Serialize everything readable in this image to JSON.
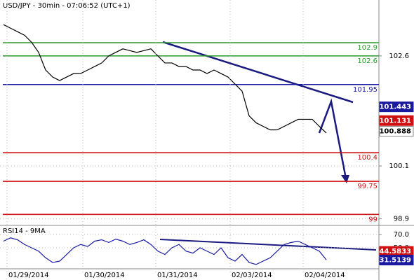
{
  "chart_data": [
    {
      "type": "line",
      "title": "USD/JPY - 30min - 07:06:52 (UTC+1)",
      "x": [
        0,
        1,
        2,
        3,
        4,
        5,
        6,
        7,
        8,
        9,
        10,
        11,
        12,
        13,
        14,
        15,
        16,
        17,
        18,
        19,
        20,
        21,
        22,
        23,
        24,
        25,
        26,
        27,
        28,
        29,
        30,
        31,
        32,
        33,
        34,
        35,
        36,
        37,
        38,
        39,
        40,
        41,
        42,
        43,
        44,
        45,
        46
      ],
      "series": [
        {
          "color": "#000000",
          "values": [
            103.31,
            103.23,
            103.15,
            103.07,
            102.91,
            102.68,
            102.28,
            102.12,
            102.04,
            102.12,
            102.2,
            102.2,
            102.28,
            102.36,
            102.44,
            102.6,
            102.68,
            102.76,
            102.72,
            102.68,
            102.72,
            102.76,
            102.6,
            102.44,
            102.44,
            102.36,
            102.36,
            102.28,
            102.28,
            102.2,
            102.28,
            102.2,
            102.12,
            101.96,
            101.8,
            101.24,
            101.08,
            101.0,
            100.92,
            100.92,
            101.0,
            101.08,
            101.16,
            101.16,
            101.16,
            101.0,
            100.85
          ]
        }
      ],
      "xlim": [
        -0.5,
        53.5
      ],
      "ylim": [
        98.75,
        103.87
      ],
      "yticks": [
        98.9,
        100.1,
        102.6
      ],
      "levels": [
        {
          "value": 102.9,
          "color": "#2a9a2a"
        },
        {
          "value": 102.6,
          "color": "#2a9a2a"
        },
        {
          "value": 101.95,
          "color": "#1a1aa0"
        },
        {
          "value": 100.4,
          "color": "#d01010"
        },
        {
          "value": 99.75,
          "color": "#d01010"
        },
        {
          "value": 99,
          "color": "#d01010"
        }
      ],
      "price_tags": [
        {
          "value": 101.443,
          "color": "#1a1aa0",
          "text_color": "#ffffff"
        },
        {
          "value": 101.131,
          "color": "#d01010",
          "text_color": "#ffffff"
        },
        {
          "value": 100.888,
          "color": "#ffffff",
          "text_color": "#000000"
        }
      ]
    },
    {
      "type": "line",
      "title": "RSI14 - 9MA",
      "x": [
        0,
        1,
        2,
        3,
        4,
        5,
        6,
        7,
        8,
        9,
        10,
        11,
        12,
        13,
        14,
        15,
        16,
        17,
        18,
        19,
        20,
        21,
        22,
        23,
        24,
        25,
        26,
        27,
        28,
        29,
        30,
        31,
        32,
        33,
        34,
        35,
        36,
        37,
        38,
        39,
        40,
        41,
        42,
        43,
        44,
        45,
        46
      ],
      "series": [
        {
          "color": "#1a1aa0",
          "values": [
            60,
            65,
            62,
            55,
            50,
            45,
            35,
            28,
            30,
            40,
            50,
            55,
            52,
            60,
            62,
            58,
            63,
            60,
            55,
            58,
            62,
            55,
            45,
            40,
            50,
            55,
            45,
            42,
            50,
            45,
            40,
            50,
            35,
            30,
            40,
            28,
            25,
            30,
            35,
            45,
            55,
            58,
            60,
            55,
            50,
            45,
            32
          ]
        }
      ],
      "xlim": [
        -0.5,
        53.5
      ],
      "ylim": [
        19.5,
        80.5
      ],
      "yticks": [
        {
          "value": 70,
          "label": "70.0"
        },
        {
          "value": 50,
          "label": "50.0"
        }
      ],
      "xticks": [
        {
          "value": 0.5,
          "label": "01/29/2014"
        },
        {
          "value": 11.3,
          "label": "01/30/2014"
        },
        {
          "value": 21.7,
          "label": "01/31/2014"
        },
        {
          "value": 32.3,
          "label": "02/03/2014"
        },
        {
          "value": 42.7,
          "label": "02/04/2014"
        }
      ],
      "price_tags": [
        {
          "value": 44.5833,
          "color": "#d01010",
          "text_color": "#ffffff"
        },
        {
          "value": 31.5139,
          "color": "#1a1aa0",
          "text_color": "#ffffff"
        }
      ]
    }
  ]
}
